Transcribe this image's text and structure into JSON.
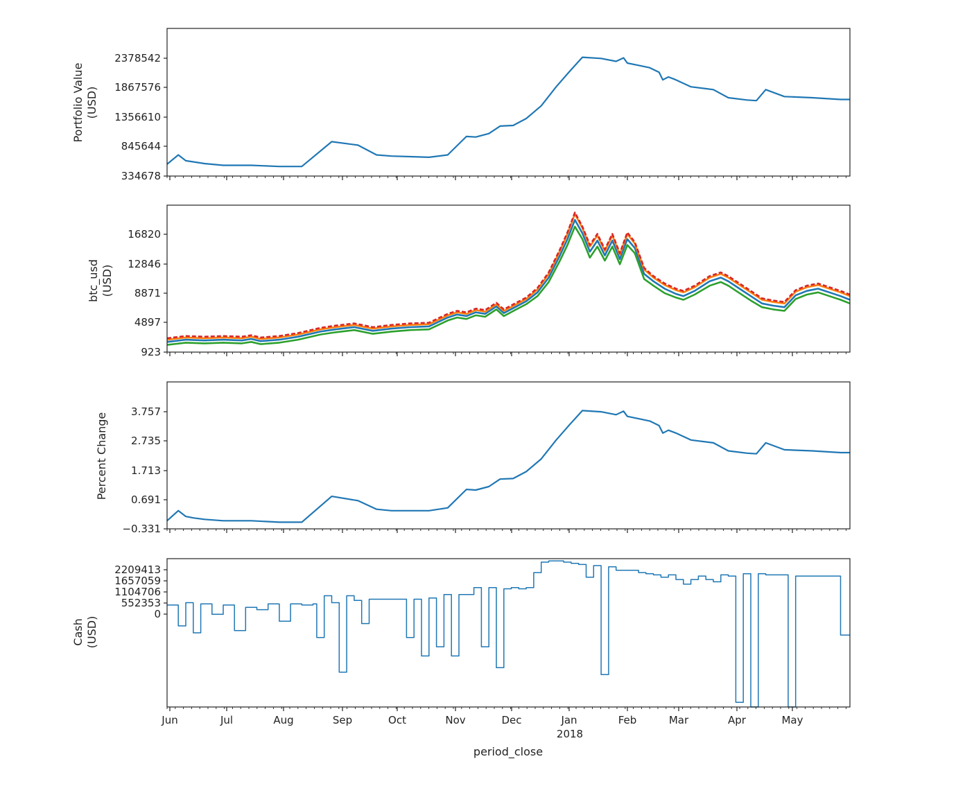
{
  "colors": {
    "series_blue": "#1f77b4",
    "series_orange": "#ff7f0e",
    "series_green": "#2ca02c",
    "series_red": "#d62728"
  },
  "x_axis": {
    "label": "period_close",
    "months": [
      "Jun",
      "Jul",
      "Aug",
      "Sep",
      "Oct",
      "Nov",
      "Dec",
      "Jan",
      "Feb",
      "Mar",
      "Apr",
      "May"
    ],
    "year_label": "2018",
    "range_days": [
      0,
      365
    ]
  },
  "chart_data": [
    {
      "type": "line",
      "ylabel_line1": "Portfolio Value",
      "ylabel_line2": "(USD)",
      "yticks": [
        "334678",
        "845644",
        "1356610",
        "1867576",
        "2378542"
      ],
      "ylim": [
        334678,
        2889508
      ],
      "x_unit": "days since Jun 1",
      "series": [
        {
          "color": "#1f77b4",
          "x": [
            0,
            6,
            10,
            14,
            20,
            30,
            45,
            60,
            72,
            88,
            102,
            112,
            120,
            130,
            140,
            150,
            160,
            165,
            172,
            178,
            185,
            192,
            200,
            208,
            215,
            222,
            232,
            240,
            244,
            246,
            252,
            258,
            263,
            265,
            268,
            272,
            280,
            292,
            300,
            310,
            315,
            320,
            330,
            345,
            360,
            365
          ],
          "y": [
            540000,
            700000,
            600000,
            580000,
            550000,
            520000,
            520000,
            500000,
            500000,
            930000,
            870000,
            700000,
            680000,
            670000,
            660000,
            700000,
            1020000,
            1010000,
            1070000,
            1200000,
            1210000,
            1330000,
            1550000,
            1880000,
            2140000,
            2390000,
            2370000,
            2320000,
            2380000,
            2290000,
            2250000,
            2210000,
            2130000,
            2000000,
            2050000,
            2000000,
            1880000,
            1830000,
            1690000,
            1650000,
            1640000,
            1830000,
            1710000,
            1690000,
            1660000,
            1660000
          ]
        }
      ]
    },
    {
      "type": "line",
      "ylabel_line1": "btc_usd",
      "ylabel_line2": "(USD)",
      "yticks": [
        "923",
        "4897",
        "8871",
        "12846",
        "16820"
      ],
      "ylim": [
        923,
        20794
      ],
      "x_unit": "days since Jun 1",
      "series": [
        {
          "color": "#1f77b4",
          "x": [
            0,
            10,
            20,
            30,
            40,
            45,
            50,
            60,
            70,
            82,
            90,
            100,
            110,
            120,
            130,
            140,
            150,
            155,
            160,
            165,
            170,
            176,
            180,
            186,
            192,
            198,
            204,
            210,
            214,
            218,
            222,
            226,
            230,
            234,
            238,
            242,
            246,
            250,
            255,
            260,
            266,
            272,
            276,
            282,
            290,
            296,
            300,
            306,
            312,
            318,
            324,
            330,
            336,
            342,
            348,
            354,
            360,
            365
          ],
          "y": [
            2300,
            2600,
            2500,
            2600,
            2500,
            2700,
            2400,
            2600,
            3000,
            3700,
            4000,
            4300,
            3800,
            4100,
            4300,
            4400,
            5600,
            6000,
            5800,
            6300,
            6100,
            7100,
            6200,
            7000,
            7800,
            9000,
            11000,
            14000,
            16200,
            18800,
            17000,
            14500,
            16000,
            14000,
            16000,
            13500,
            16200,
            15000,
            11500,
            10500,
            9500,
            8800,
            8500,
            9200,
            10500,
            11000,
            10500,
            9500,
            8500,
            7500,
            7200,
            7000,
            8600,
            9200,
            9500,
            9000,
            8500,
            8000
          ]
        },
        {
          "color": "#ff7f0e",
          "x": [
            0,
            10,
            20,
            30,
            40,
            45,
            50,
            60,
            70,
            82,
            90,
            100,
            110,
            120,
            130,
            140,
            150,
            155,
            160,
            165,
            170,
            176,
            180,
            186,
            192,
            198,
            204,
            210,
            214,
            218,
            222,
            226,
            230,
            234,
            238,
            242,
            246,
            250,
            255,
            260,
            266,
            272,
            276,
            282,
            290,
            296,
            300,
            306,
            312,
            318,
            324,
            330,
            336,
            342,
            348,
            354,
            360,
            365
          ],
          "y": [
            2600,
            2900,
            2800,
            2900,
            2800,
            3000,
            2700,
            2900,
            3300,
            4000,
            4300,
            4600,
            4100,
            4400,
            4600,
            4700,
            5900,
            6300,
            6100,
            6600,
            6400,
            7400,
            6500,
            7300,
            8100,
            9400,
            11500,
            14600,
            16900,
            19600,
            17700,
            15200,
            16700,
            14600,
            16700,
            14100,
            16900,
            15600,
            12100,
            11000,
            10000,
            9300,
            9000,
            9700,
            11000,
            11500,
            11000,
            10000,
            9000,
            8000,
            7700,
            7500,
            9100,
            9700,
            10000,
            9500,
            9000,
            8500
          ]
        },
        {
          "color": "#2ca02c",
          "x": [
            0,
            10,
            20,
            30,
            40,
            45,
            50,
            60,
            70,
            82,
            90,
            100,
            110,
            120,
            130,
            140,
            150,
            155,
            160,
            165,
            170,
            176,
            180,
            186,
            192,
            198,
            204,
            210,
            214,
            218,
            222,
            226,
            230,
            234,
            238,
            242,
            246,
            250,
            255,
            260,
            266,
            272,
            276,
            282,
            290,
            296,
            300,
            306,
            312,
            318,
            324,
            330,
            336,
            342,
            348,
            354,
            360,
            365
          ],
          "y": [
            1900,
            2200,
            2100,
            2200,
            2100,
            2300,
            2000,
            2200,
            2600,
            3300,
            3600,
            3900,
            3400,
            3700,
            3900,
            4000,
            5200,
            5600,
            5400,
            5900,
            5700,
            6700,
            5800,
            6600,
            7400,
            8500,
            10400,
            13300,
            15400,
            17900,
            16200,
            13700,
            15200,
            13300,
            15200,
            12800,
            15400,
            14300,
            10800,
            9900,
            8900,
            8300,
            8000,
            8700,
            9900,
            10400,
            9900,
            8900,
            7900,
            7000,
            6700,
            6500,
            8100,
            8700,
            9000,
            8500,
            8000,
            7500
          ]
        },
        {
          "color": "#d62728",
          "x": [
            0,
            10,
            20,
            30,
            40,
            45,
            50,
            60,
            70,
            82,
            90,
            100,
            110,
            120,
            130,
            140,
            150,
            155,
            160,
            165,
            170,
            176,
            180,
            186,
            192,
            198,
            204,
            210,
            214,
            218,
            222,
            226,
            230,
            234,
            238,
            242,
            246,
            250,
            255,
            260,
            266,
            272,
            276,
            282,
            290,
            296,
            300,
            306,
            312,
            318,
            324,
            330,
            336,
            342,
            348,
            354,
            360,
            365
          ],
          "y": [
            2800,
            3100,
            3000,
            3100,
            3000,
            3200,
            2900,
            3100,
            3500,
            4200,
            4500,
            4800,
            4300,
            4600,
            4800,
            4900,
            6100,
            6500,
            6300,
            6800,
            6600,
            7600,
            6700,
            7500,
            8300,
            9600,
            11700,
            14800,
            17100,
            19800,
            17900,
            15400,
            16900,
            14800,
            16900,
            14300,
            17100,
            15800,
            12300,
            11200,
            10200,
            9500,
            9200,
            9900,
            11200,
            11700,
            11200,
            10200,
            9200,
            8200,
            7900,
            7700,
            9300,
            9900,
            10200,
            9700,
            9200,
            8700
          ]
        }
      ]
    },
    {
      "type": "line",
      "ylabel_line1": "Percent Change",
      "yticks": [
        "−0.331",
        "0.691",
        "1.713",
        "2.735",
        "3.757"
      ],
      "ylim": [
        -0.331,
        4.779
      ],
      "x_unit": "days since Jun 1",
      "series": [
        {
          "color": "#1f77b4",
          "x": [
            0,
            6,
            10,
            14,
            20,
            30,
            45,
            60,
            72,
            88,
            102,
            112,
            120,
            130,
            140,
            150,
            160,
            165,
            172,
            178,
            185,
            192,
            200,
            208,
            215,
            222,
            232,
            240,
            244,
            246,
            252,
            258,
            263,
            265,
            268,
            272,
            280,
            292,
            300,
            310,
            315,
            320,
            330,
            345,
            360,
            365
          ],
          "y": [
            -0.05,
            0.3,
            0.1,
            0.05,
            0.0,
            -0.05,
            -0.05,
            -0.1,
            -0.1,
            0.8,
            0.65,
            0.35,
            0.3,
            0.3,
            0.3,
            0.4,
            1.04,
            1.02,
            1.14,
            1.4,
            1.42,
            1.66,
            2.1,
            2.76,
            3.28,
            3.78,
            3.74,
            3.64,
            3.76,
            3.58,
            3.5,
            3.42,
            3.26,
            3.0,
            3.1,
            3.0,
            2.76,
            2.66,
            2.38,
            2.3,
            2.28,
            2.66,
            2.42,
            2.38,
            2.32,
            2.32
          ]
        }
      ]
    },
    {
      "type": "line",
      "ylabel_line1": "Cash",
      "ylabel_line2": "(USD)",
      "yticks": [
        "0",
        "552353",
        "1104706",
        "1657059",
        "2209413"
      ],
      "ylim": [
        -3900000,
        2500000
      ],
      "x_unit": "days since Jun 1",
      "series": [
        {
          "color": "#1f77b4",
          "x": [
            0,
            6,
            10,
            14,
            18,
            24,
            30,
            36,
            42,
            48,
            54,
            60,
            66,
            72,
            78,
            80,
            84,
            88,
            92,
            96,
            100,
            104,
            108,
            112,
            116,
            120,
            124,
            128,
            132,
            136,
            140,
            144,
            148,
            152,
            156,
            160,
            164,
            168,
            172,
            176,
            180,
            184,
            188,
            192,
            196,
            200,
            204,
            208,
            212,
            216,
            220,
            224,
            228,
            232,
            236,
            240,
            244,
            248,
            252,
            256,
            260,
            264,
            268,
            272,
            276,
            280,
            284,
            288,
            292,
            296,
            300,
            304,
            308,
            312,
            316,
            320,
            324,
            328,
            332,
            336,
            340,
            344,
            348,
            352,
            356,
            360,
            365
          ],
          "y": [
            500000,
            -400000,
            600000,
            -700000,
            550000,
            100000,
            500000,
            -600000,
            400000,
            300000,
            550000,
            -200000,
            550000,
            500000,
            550000,
            -900000,
            900000,
            600000,
            -2400000,
            900000,
            700000,
            -300000,
            750000,
            750000,
            750000,
            750000,
            750000,
            -900000,
            750000,
            -1700000,
            800000,
            -1300000,
            950000,
            -1700000,
            950000,
            950000,
            1250000,
            -1300000,
            1250000,
            -2200000,
            1200000,
            1250000,
            1200000,
            1250000,
            1900000,
            2350000,
            2400000,
            2400000,
            2350000,
            2300000,
            2250000,
            1700000,
            2200000,
            -2500000,
            2150000,
            2000000,
            2000000,
            2000000,
            1900000,
            1850000,
            1800000,
            1700000,
            1800000,
            1600000,
            1400000,
            1600000,
            1750000,
            1600000,
            1500000,
            1800000,
            1750000,
            -3700000,
            1850000,
            -3900000,
            1850000,
            1800000,
            1800000,
            1800000,
            -3900000,
            1750000,
            1750000,
            1750000,
            1750000,
            1750000,
            1750000,
            -800000,
            -800000
          ]
        }
      ]
    }
  ]
}
